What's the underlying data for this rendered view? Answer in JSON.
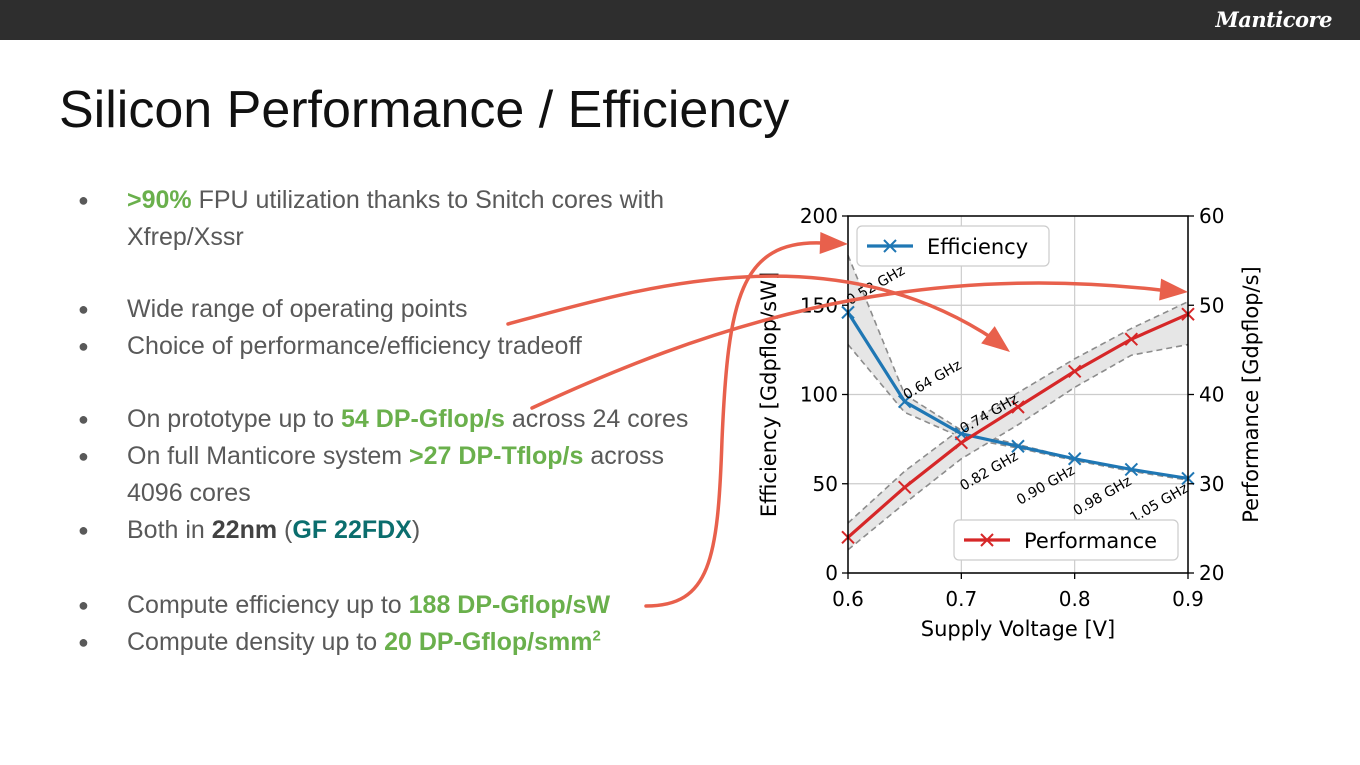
{
  "brand": "Manticore",
  "title": "Silicon Performance / Efficiency",
  "bullets": [
    {
      "pre": "",
      "hl": ">90%",
      "post": " FPU utilization thanks to Snitch cores with",
      "line2": "Xfrep/Xssr"
    },
    {
      "text": "Wide range of operating points"
    },
    {
      "text": "Choice of performance/efficiency tradeoff"
    },
    {
      "pre": "On prototype up to ",
      "hl": "54 DP-Gflop/s",
      "post": " across 24 cores"
    },
    {
      "pre": "On full Manticore system ",
      "hl": ">27 DP-Tflop/s",
      "post": " across",
      "line2": "4096 cores"
    },
    {
      "pre": "Both in ",
      "bold": "22nm",
      "mid": " (",
      "teal": "GF 22FDX",
      "post": ")"
    },
    {
      "pre": "Compute efficiency up to ",
      "hl": "188 DP-Gflop/sW"
    },
    {
      "pre": "Compute density up to ",
      "hl": "20 DP-Gflop/smm",
      "sup": "2"
    }
  ],
  "chart_data": {
    "type": "line",
    "x": [
      0.6,
      0.65,
      0.7,
      0.75,
      0.8,
      0.85,
      0.9
    ],
    "xlabel": "Supply Voltage [V]",
    "xlim": [
      0.6,
      0.9
    ],
    "x_ticks": [
      "0.6",
      "0.7",
      "0.8",
      "0.9"
    ],
    "ylabel_left": "Efficiency [Gdpflop/sW]",
    "ylim_left": [
      0,
      200
    ],
    "y_ticks_left": [
      "0",
      "50",
      "100",
      "150",
      "200"
    ],
    "ylabel_right": "Performance [Gdpflop/s]",
    "ylim_right": [
      20,
      60
    ],
    "y_ticks_right": [
      "20",
      "30",
      "40",
      "50",
      "60"
    ],
    "grid": true,
    "series": [
      {
        "name": "Efficiency",
        "axis": "left",
        "color": "#1f77b4",
        "values": [
          146,
          96,
          78,
          71,
          64,
          58,
          53
        ],
        "upper": [
          178,
          100,
          80,
          72,
          64,
          58,
          53
        ],
        "lower": [
          128,
          90,
          76,
          70,
          63,
          57,
          52
        ]
      },
      {
        "name": "Performance",
        "axis": "right",
        "color": "#d62728",
        "values": [
          24,
          29.6,
          34.6,
          38.6,
          42.6,
          46.2,
          49
        ],
        "upper": [
          25.6,
          31.4,
          36.2,
          40.2,
          44,
          47.4,
          50.4
        ],
        "lower": [
          22.6,
          27.8,
          32.8,
          36.6,
          40.8,
          44.4,
          45.6
        ]
      }
    ],
    "annotations": [
      {
        "text": "0.52 GHz",
        "x": 0.6,
        "y": 150
      },
      {
        "text": "0.64 GHz",
        "x": 0.65,
        "y": 97
      },
      {
        "text": "0.74 GHz",
        "x": 0.7,
        "y": 78
      },
      {
        "text": "0.82 GHz",
        "x": 0.7,
        "y": 46
      },
      {
        "text": "0.90 GHz",
        "x": 0.75,
        "y": 38
      },
      {
        "text": "0.98 GHz",
        "x": 0.8,
        "y": 32
      },
      {
        "text": "1.05 GHz",
        "x": 0.85,
        "y": 28
      }
    ],
    "legend": [
      {
        "name": "Efficiency",
        "placement": "top-left"
      },
      {
        "name": "Performance",
        "placement": "bottom-right"
      }
    ]
  },
  "arrow_color": "#e8604c"
}
